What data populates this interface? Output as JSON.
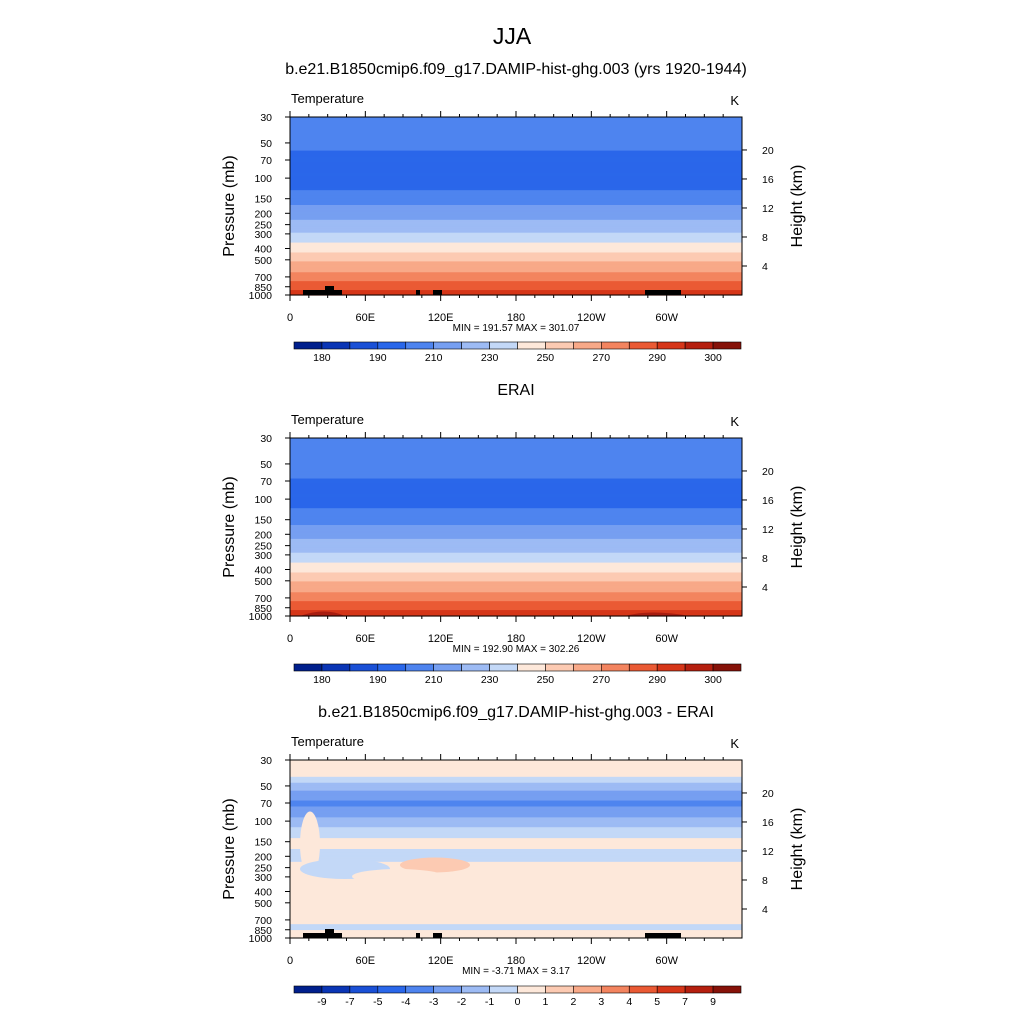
{
  "title": "JJA",
  "chart_data": [
    {
      "type": "heatmap",
      "title": "b.e21.B1850cmip6.f09_g17.DAMIP-hist-ghg.003 (yrs 1920-1944)",
      "variable_label": "Temperature",
      "units": "K",
      "ylabel": "Pressure (mb)",
      "ylabel_right": "Height (km)",
      "y_ticks": [
        30,
        50,
        70,
        100,
        150,
        200,
        250,
        300,
        400,
        500,
        700,
        850,
        1000
      ],
      "y_right_ticks": [
        4,
        8,
        12,
        16,
        20
      ],
      "x_ticks": [
        "0",
        "60E",
        "120E",
        "180",
        "120W",
        "60W"
      ],
      "ylim": [
        1000,
        30
      ],
      "stats": "MIN = 191.57  MAX = 301.07",
      "colorbar_labels": [
        "180",
        "190",
        "210",
        "230",
        "250",
        "270",
        "290",
        "300"
      ],
      "profile": [
        [
          30,
          208
        ],
        [
          50,
          203
        ],
        [
          70,
          196
        ],
        [
          100,
          193
        ],
        [
          150,
          205
        ],
        [
          200,
          216
        ],
        [
          250,
          223
        ],
        [
          300,
          231
        ],
        [
          400,
          246
        ],
        [
          500,
          258
        ],
        [
          700,
          275
        ],
        [
          850,
          287
        ],
        [
          1000,
          294
        ]
      ]
    },
    {
      "type": "heatmap",
      "title": "ERAI",
      "variable_label": "Temperature",
      "units": "K",
      "ylabel": "Pressure (mb)",
      "ylabel_right": "Height (km)",
      "y_ticks": [
        30,
        50,
        70,
        100,
        150,
        200,
        250,
        300,
        400,
        500,
        700,
        850,
        1000
      ],
      "y_right_ticks": [
        4,
        8,
        12,
        16,
        20
      ],
      "x_ticks": [
        "0",
        "60E",
        "120E",
        "180",
        "120W",
        "60W"
      ],
      "ylim": [
        1000,
        30
      ],
      "stats": "MIN = 192.90  MAX = 302.26",
      "colorbar_labels": [
        "180",
        "190",
        "210",
        "230",
        "250",
        "270",
        "290",
        "300"
      ],
      "profile": [
        [
          30,
          210
        ],
        [
          50,
          205
        ],
        [
          70,
          199
        ],
        [
          100,
          195
        ],
        [
          150,
          206
        ],
        [
          200,
          217
        ],
        [
          250,
          224
        ],
        [
          300,
          232
        ],
        [
          400,
          247
        ],
        [
          500,
          259
        ],
        [
          700,
          276
        ],
        [
          850,
          288
        ],
        [
          1000,
          295
        ]
      ]
    },
    {
      "type": "heatmap",
      "title": "b.e21.B1850cmip6.f09_g17.DAMIP-hist-ghg.003 - ERAI",
      "variable_label": "Temperature",
      "units": "K",
      "ylabel": "Pressure (mb)",
      "ylabel_right": "Height (km)",
      "y_ticks": [
        30,
        50,
        70,
        100,
        150,
        200,
        250,
        300,
        400,
        500,
        700,
        850,
        1000
      ],
      "y_right_ticks": [
        4,
        8,
        12,
        16,
        20
      ],
      "x_ticks": [
        "0",
        "60E",
        "120E",
        "180",
        "120W",
        "60W"
      ],
      "ylim": [
        1000,
        30
      ],
      "stats": "MIN =  -3.71  MAX =   3.17",
      "colorbar_labels": [
        "-9",
        "-7",
        "-5",
        "-4",
        "-3",
        "-2",
        "-1",
        "0",
        "1",
        "2",
        "3",
        "4",
        "5",
        "7",
        "9"
      ],
      "profile": [
        [
          30,
          0.5
        ],
        [
          40,
          0.3
        ],
        [
          50,
          -1.5
        ],
        [
          60,
          -2.5
        ],
        [
          70,
          -3.3
        ],
        [
          85,
          -2.5
        ],
        [
          100,
          -1.5
        ],
        [
          120,
          -0.7
        ],
        [
          150,
          0.3
        ],
        [
          200,
          -0.3
        ],
        [
          250,
          0.3
        ],
        [
          300,
          0.4
        ],
        [
          400,
          0.5
        ],
        [
          500,
          0.5
        ],
        [
          700,
          0.4
        ],
        [
          800,
          -0.3
        ],
        [
          900,
          0.3
        ],
        [
          1000,
          0.5
        ]
      ]
    }
  ],
  "colors": {
    "cb_temp": [
      "#001f8c",
      "#0a35b5",
      "#1a50d6",
      "#2a67ea",
      "#4e84ef",
      "#769ff1",
      "#9dbbf4",
      "#c3d8f7",
      "#fde8da",
      "#fccab2",
      "#f8a988",
      "#f3845f",
      "#ea5a34",
      "#d63619",
      "#b51f0f",
      "#861209"
    ],
    "cb_diff": [
      "#001f8c",
      "#0a35b5",
      "#1a50d6",
      "#2a67ea",
      "#4e84ef",
      "#769ff1",
      "#9dbbf4",
      "#c3d8f7",
      "#fde8da",
      "#fccab2",
      "#f8a988",
      "#f3845f",
      "#ea5a34",
      "#d63619",
      "#b51f0f",
      "#861209"
    ]
  }
}
